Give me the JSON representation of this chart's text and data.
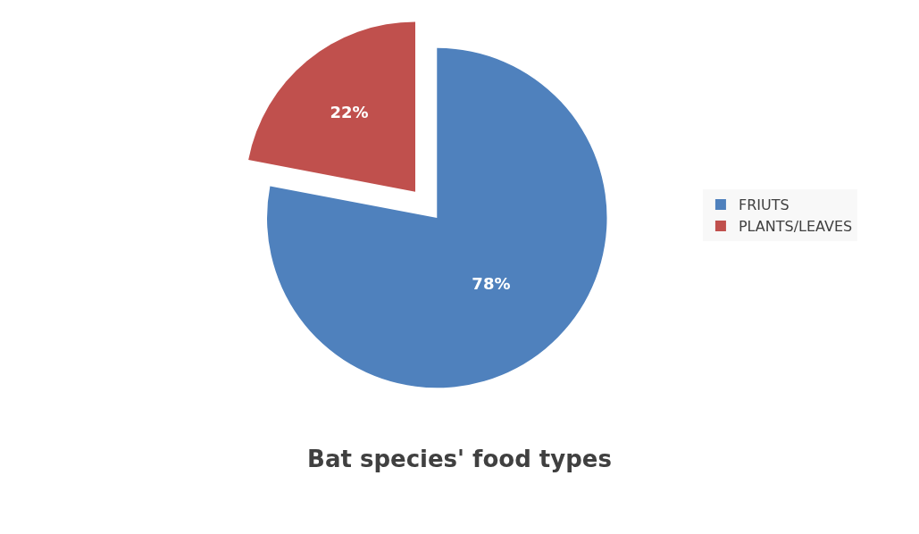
{
  "chart_data": {
    "type": "pie",
    "title": "Bat species' food types",
    "categories": [
      "FRIUTS",
      "PLANTS/LEAVES"
    ],
    "values": [
      78,
      22
    ],
    "colors": [
      "#4f81bd",
      "#c0504d"
    ],
    "value_labels": [
      "78%",
      "22%"
    ],
    "legend": "right"
  }
}
